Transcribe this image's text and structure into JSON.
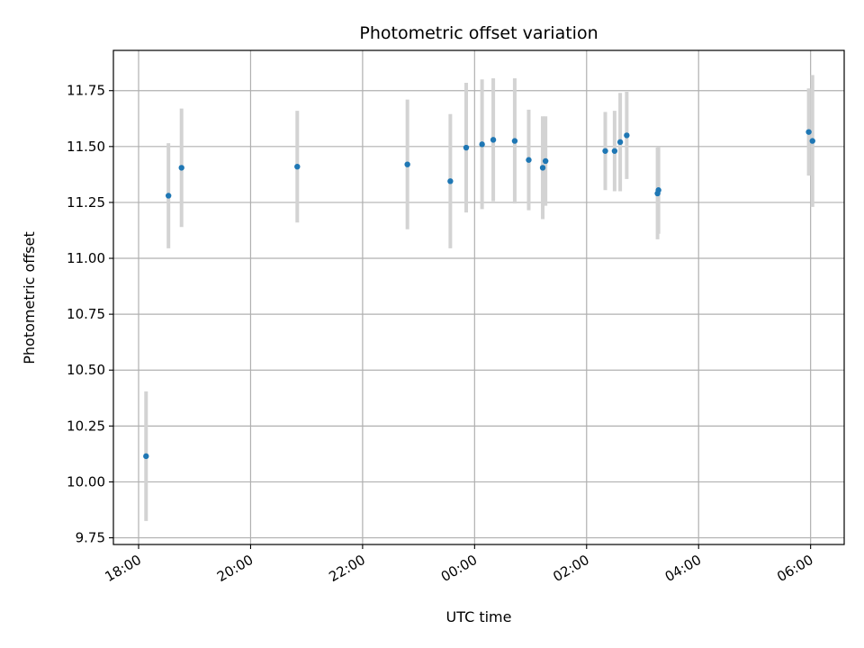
{
  "chart_data": {
    "type": "scatter",
    "title": "Photometric offset variation",
    "xlabel": "UTC time",
    "ylabel": "Photometric offset",
    "x_ticks": [
      "18:00",
      "20:00",
      "22:00",
      "00:00",
      "02:00",
      "04:00",
      "06:00"
    ],
    "y_ticks": [
      "9.75",
      "10.00",
      "10.25",
      "10.50",
      "10.75",
      "11.00",
      "11.25",
      "11.50",
      "11.75"
    ],
    "ylim": [
      9.72,
      11.93
    ],
    "grid": true,
    "point_color": "#1f77b4",
    "errorbar_color": "#d3d3d3",
    "points": [
      {
        "x": "18:08",
        "y": 10.115,
        "err": 0.29
      },
      {
        "x": "18:32",
        "y": 11.28,
        "err": 0.235
      },
      {
        "x": "18:46",
        "y": 11.405,
        "err": 0.265
      },
      {
        "x": "20:50",
        "y": 11.41,
        "err": 0.25
      },
      {
        "x": "22:48",
        "y": 11.42,
        "err": 0.29
      },
      {
        "x": "23:34",
        "y": 11.345,
        "err": 0.3
      },
      {
        "x": "23:51",
        "y": 11.495,
        "err": 0.29
      },
      {
        "x": "00:08",
        "y": 11.51,
        "err": 0.29
      },
      {
        "x": "00:20",
        "y": 11.53,
        "err": 0.275
      },
      {
        "x": "00:43",
        "y": 11.525,
        "err": 0.28
      },
      {
        "x": "00:58",
        "y": 11.44,
        "err": 0.225
      },
      {
        "x": "01:13",
        "y": 11.405,
        "err": 0.23
      },
      {
        "x": "01:16",
        "y": 11.435,
        "err": 0.2
      },
      {
        "x": "02:20",
        "y": 11.48,
        "err": 0.175
      },
      {
        "x": "02:30",
        "y": 11.48,
        "err": 0.18
      },
      {
        "x": "02:36",
        "y": 11.52,
        "err": 0.22
      },
      {
        "x": "02:43",
        "y": 11.55,
        "err": 0.195
      },
      {
        "x": "03:16",
        "y": 11.29,
        "err": 0.205
      },
      {
        "x": "03:17",
        "y": 11.305,
        "err": 0.195
      },
      {
        "x": "05:58",
        "y": 11.565,
        "err": 0.195
      },
      {
        "x": "06:02",
        "y": 11.525,
        "err": 0.295
      }
    ]
  }
}
